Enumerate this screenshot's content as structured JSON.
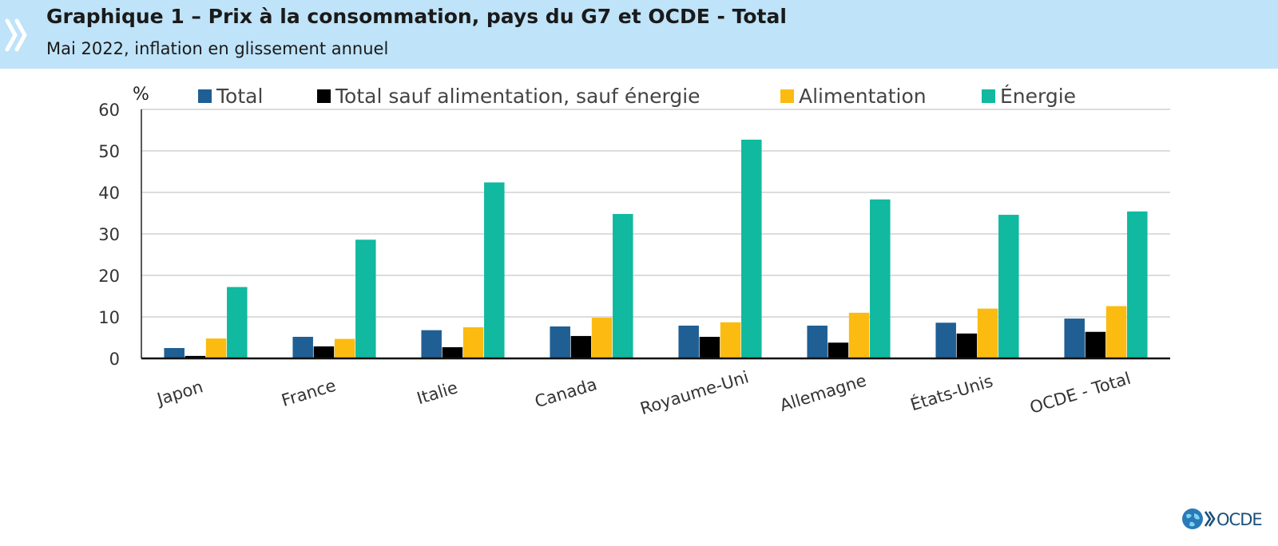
{
  "header": {
    "title": "Graphique 1 – Prix à la consommation, pays du G7 et OCDE - Total",
    "subtitle": "Mai 2022, inflation en glissement annuel"
  },
  "logo": {
    "text": "OCDE"
  },
  "chart_data": {
    "type": "bar",
    "ylabel": "%",
    "ylim": [
      0,
      60
    ],
    "yticks": [
      0,
      10,
      20,
      30,
      40,
      50,
      60
    ],
    "grid": true,
    "legend_position": "top",
    "categories": [
      "Japon",
      "France",
      "Italie",
      "Canada",
      "Royaume-Uni",
      "Allemagne",
      "États-Unis",
      "OCDE - Total"
    ],
    "series": [
      {
        "name": "Total",
        "color": "#1f5f94",
        "values": [
          2.5,
          5.2,
          6.8,
          7.7,
          7.9,
          7.9,
          8.6,
          9.6
        ]
      },
      {
        "name": "Total sauf alimentation, sauf énergie",
        "color": "#000000",
        "values": [
          0.6,
          2.9,
          2.7,
          5.4,
          5.2,
          3.8,
          6.0,
          6.4
        ]
      },
      {
        "name": "Alimentation",
        "color": "#fbbb10",
        "values": [
          4.8,
          4.7,
          7.5,
          9.8,
          8.7,
          11.0,
          12.0,
          12.6
        ]
      },
      {
        "name": "Énergie",
        "color": "#10b9a0",
        "values": [
          17.2,
          28.6,
          42.4,
          34.8,
          52.7,
          38.3,
          34.6,
          35.4
        ]
      }
    ]
  }
}
